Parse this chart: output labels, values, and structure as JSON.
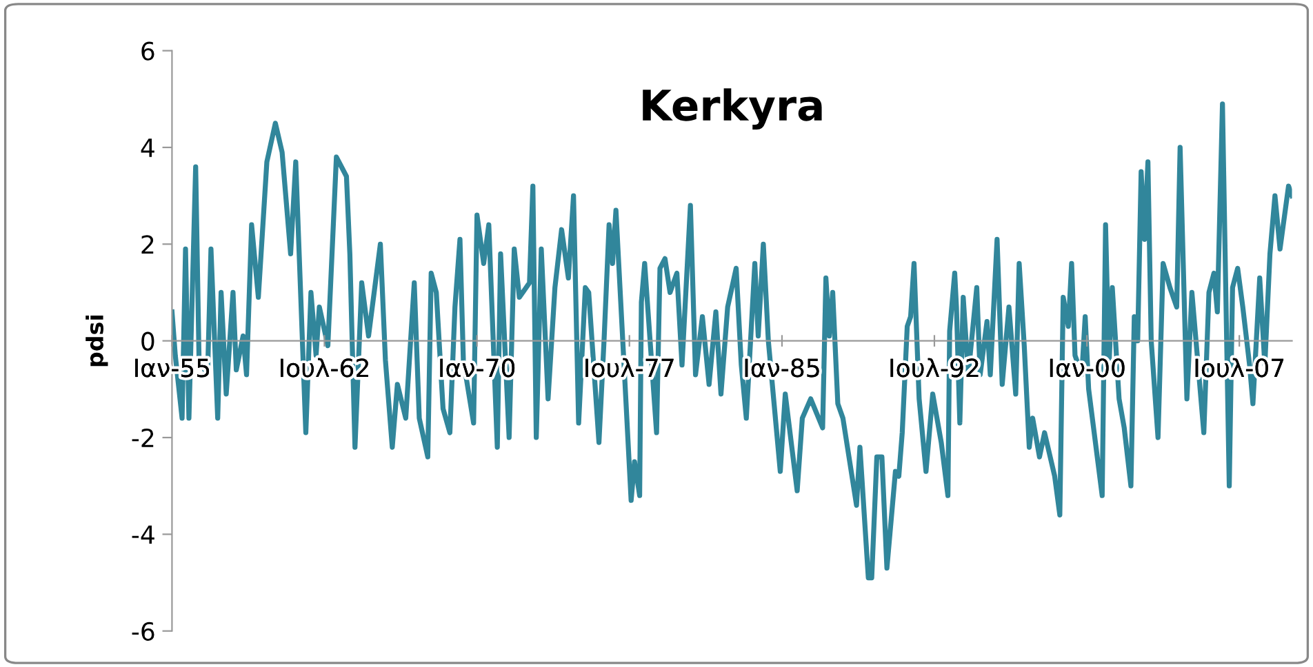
{
  "chart_data": {
    "type": "line",
    "title": "Kerkyra",
    "ylabel": "pdsi",
    "x": [
      "1955-01",
      "1955-03",
      "1955-07",
      "1955-09",
      "1955-11",
      "1956-03",
      "1956-05",
      "1956-10",
      "1956-12",
      "1957-04",
      "1957-06",
      "1957-09",
      "1958-01",
      "1958-03",
      "1958-07",
      "1958-09",
      "1958-12",
      "1959-04",
      "1959-09",
      "1960-02",
      "1960-06",
      "1960-11",
      "1961-02",
      "1961-08",
      "1961-11",
      "1962-02",
      "1962-04",
      "1962-09",
      "1963-02",
      "1963-08",
      "1963-10",
      "1964-01",
      "1964-05",
      "1964-09",
      "1965-04",
      "1965-07",
      "1965-11",
      "1966-02",
      "1966-07",
      "1966-12",
      "1967-03",
      "1967-08",
      "1967-10",
      "1968-01",
      "1968-05",
      "1968-09",
      "1968-12",
      "1969-03",
      "1969-05",
      "1969-11",
      "1970-01",
      "1970-05",
      "1970-08",
      "1971-01",
      "1971-03",
      "1971-08",
      "1971-11",
      "1972-02",
      "1972-08",
      "1972-10",
      "1972-12",
      "1973-03",
      "1973-07",
      "1973-11",
      "1974-03",
      "1974-07",
      "1974-10",
      "1975-01",
      "1975-05",
      "1975-07",
      "1976-01",
      "1976-04",
      "1976-07",
      "1976-09",
      "1976-11",
      "1977-08",
      "1977-10",
      "1978-01",
      "1978-02",
      "1978-04",
      "1978-11",
      "1979-01",
      "1979-04",
      "1979-07",
      "1979-11",
      "1980-02",
      "1980-07",
      "1980-10",
      "1981-02",
      "1981-06",
      "1981-10",
      "1982-01",
      "1982-05",
      "1982-10",
      "1983-01",
      "1983-04",
      "1983-09",
      "1983-11",
      "1984-02",
      "1984-05",
      "1984-12",
      "1985-03",
      "1985-10",
      "1986-01",
      "1986-06",
      "1987-01",
      "1987-03",
      "1987-05",
      "1987-07",
      "1987-10",
      "1988-01",
      "1988-09",
      "1988-11",
      "1989-04",
      "1989-06",
      "1989-09",
      "1989-12",
      "1990-03",
      "1990-08",
      "1990-10",
      "1990-12",
      "1991-03",
      "1991-05",
      "1991-07",
      "1991-10",
      "1992-02",
      "1992-06",
      "1992-11",
      "1993-03",
      "1993-04",
      "1993-07",
      "1993-08",
      "1993-10",
      "1993-12",
      "1994-03",
      "1994-08",
      "1994-10",
      "1995-02",
      "1995-04",
      "1995-08",
      "1995-11",
      "1996-03",
      "1996-07",
      "1996-09",
      "1996-12",
      "1997-03",
      "1997-05",
      "1997-09",
      "1997-12",
      "1998-06",
      "1998-09",
      "1998-11",
      "1999-02",
      "1999-04",
      "1999-06",
      "1999-10",
      "1999-12",
      "2000-02",
      "2000-10",
      "2000-12",
      "2001-02",
      "2001-04",
      "2001-08",
      "2001-11",
      "2002-03",
      "2002-05",
      "2002-07",
      "2002-09",
      "2002-11",
      "2003-01",
      "2003-03",
      "2003-07",
      "2003-10",
      "2004-02",
      "2004-06",
      "2004-08",
      "2004-12",
      "2005-03",
      "2005-10",
      "2006-01",
      "2006-04",
      "2006-06",
      "2006-09",
      "2007-01",
      "2007-03",
      "2007-06",
      "2007-09",
      "2008-01",
      "2008-03",
      "2008-07",
      "2008-10",
      "2009-01",
      "2009-04",
      "2009-07",
      "2009-12",
      "2010-02"
    ],
    "series": [
      {
        "color": "#31869b",
        "values": [
          0.6,
          -0.3,
          -1.6,
          1.9,
          -1.6,
          3.6,
          -0.4,
          -0.7,
          1.9,
          -1.6,
          1.0,
          -1.1,
          1.0,
          -0.6,
          0.1,
          -0.7,
          2.4,
          0.9,
          3.7,
          4.5,
          3.9,
          1.8,
          3.7,
          -1.9,
          1.0,
          -0.3,
          0.7,
          -0.1,
          3.8,
          3.4,
          1.8,
          -2.2,
          1.2,
          0.1,
          2.0,
          -0.4,
          -2.2,
          -0.9,
          -1.6,
          1.2,
          -1.6,
          -2.4,
          1.4,
          1.0,
          -1.4,
          -1.9,
          0.7,
          2.1,
          -0.4,
          -1.7,
          2.6,
          1.6,
          2.4,
          -2.2,
          1.8,
          -2.0,
          1.9,
          0.9,
          1.2,
          3.2,
          -2.0,
          1.9,
          -1.2,
          1.1,
          2.3,
          1.3,
          3.0,
          -1.7,
          1.1,
          1.0,
          -2.1,
          0.0,
          2.4,
          1.6,
          2.7,
          -3.3,
          -2.5,
          -3.2,
          0.8,
          1.6,
          -1.9,
          1.5,
          1.7,
          1.0,
          1.4,
          -0.5,
          2.8,
          -0.7,
          0.5,
          -0.9,
          0.6,
          -1.1,
          0.7,
          1.5,
          -0.5,
          -1.6,
          1.6,
          0.1,
          2.0,
          0.0,
          -2.7,
          -1.1,
          -3.1,
          -1.6,
          -1.2,
          -1.8,
          1.3,
          0.1,
          1.0,
          -1.3,
          -1.6,
          -3.4,
          -2.2,
          -4.9,
          -4.9,
          -2.4,
          -2.4,
          -4.7,
          -2.7,
          -2.8,
          -1.9,
          0.3,
          0.5,
          1.6,
          -1.2,
          -2.7,
          -1.1,
          -2.1,
          -3.2,
          0.2,
          1.4,
          0.7,
          -1.7,
          0.9,
          -0.7,
          1.1,
          -0.7,
          0.4,
          -0.7,
          2.1,
          -0.9,
          0.7,
          -1.1,
          1.6,
          -0.1,
          -2.2,
          -1.6,
          -2.4,
          -1.9,
          -2.8,
          -3.6,
          0.9,
          0.3,
          1.6,
          -0.3,
          -0.7,
          0.5,
          -1.0,
          -3.2,
          2.4,
          -0.5,
          1.1,
          -1.2,
          -1.8,
          -3.0,
          0.5,
          0.0,
          3.5,
          2.1,
          3.7,
          0.0,
          -2.0,
          1.6,
          1.1,
          0.7,
          4.0,
          -1.2,
          1.0,
          -1.9,
          1.0,
          1.4,
          0.6,
          4.9,
          -3.0,
          1.1,
          1.5,
          0.7,
          -0.5,
          -1.3,
          1.3,
          -0.5,
          1.8,
          3.0,
          1.9,
          3.2,
          3.0
        ]
      }
    ],
    "xlim": [
      "1955-01",
      "2010-02"
    ],
    "xticks": [
      {
        "value": "1955-01",
        "label": "Ιαν-55"
      },
      {
        "value": "1962-07",
        "label": "Ιουλ-62"
      },
      {
        "value": "1970-01",
        "label": "Ιαν-70"
      },
      {
        "value": "1977-07",
        "label": "Ιουλ-77"
      },
      {
        "value": "1985-01",
        "label": "Ιαν-85"
      },
      {
        "value": "1992-07",
        "label": "Ιουλ-92"
      },
      {
        "value": "2000-01",
        "label": "Ιαν-00"
      },
      {
        "value": "2007-07",
        "label": "Ιουλ-07"
      }
    ],
    "ylim": [
      -6,
      6
    ],
    "yticks": [
      -6,
      -4,
      -2,
      0,
      2,
      4,
      6
    ],
    "grid": false,
    "legend": false,
    "marker": "none",
    "line_style": "solid"
  }
}
